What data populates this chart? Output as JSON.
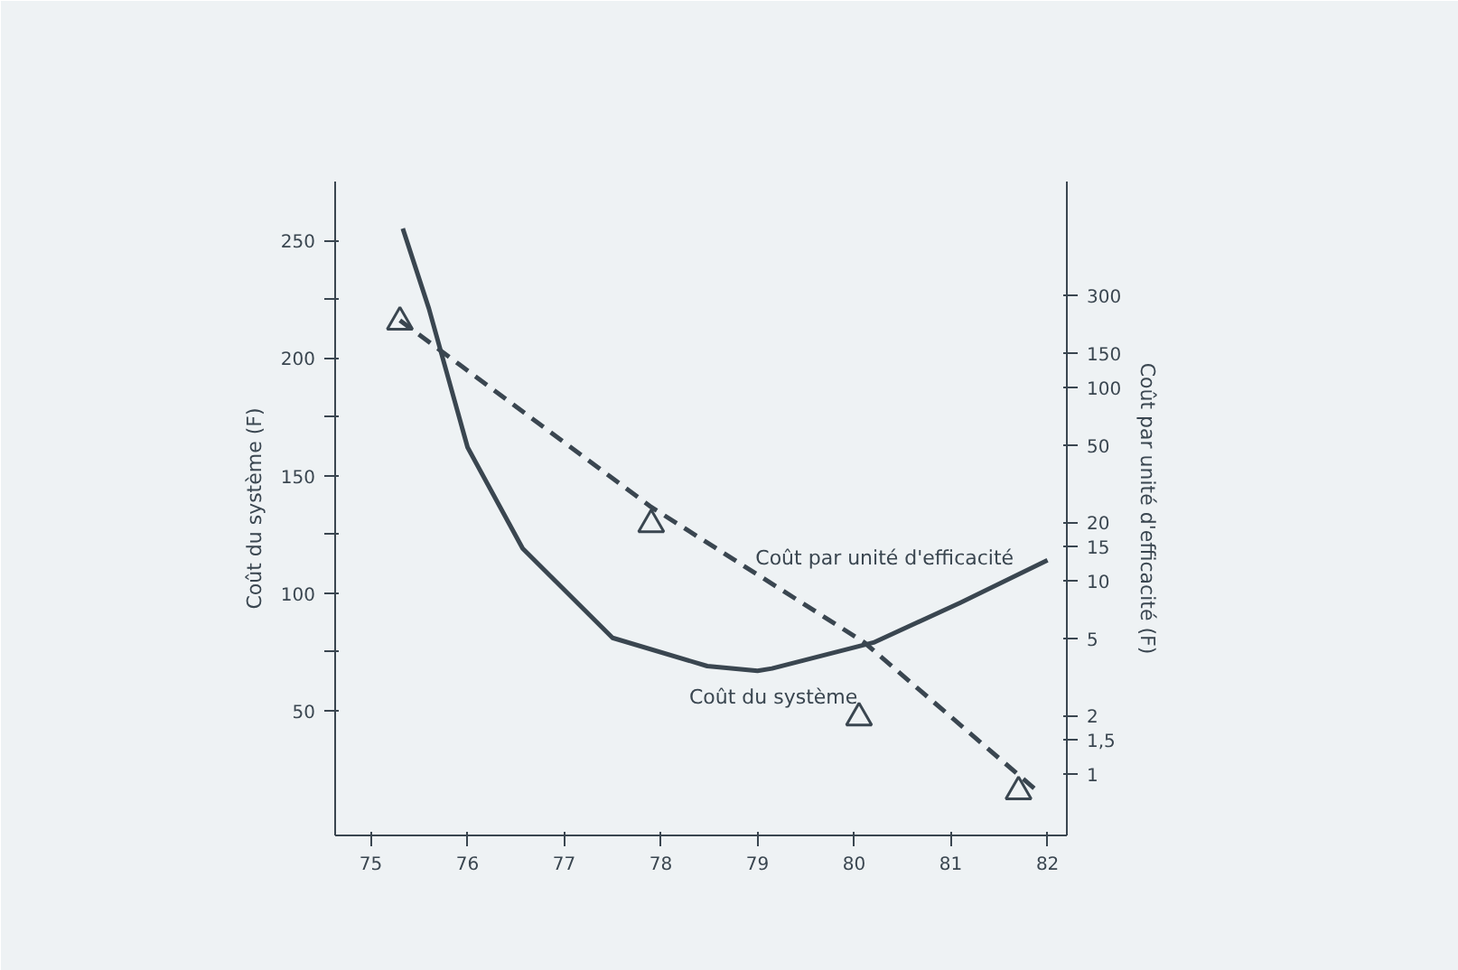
{
  "chart_data": {
    "type": "line",
    "xlabel": null,
    "ylabel": "Coût du système (F)",
    "y2label": "Coût par unité d'efficacité (F)",
    "xlim": [
      74.63,
      82.2
    ],
    "xticks": [
      75,
      76,
      77,
      78,
      79,
      80,
      81,
      82
    ],
    "ylim": [
      -3,
      275
    ],
    "yticks": [
      50,
      {
        "value": 75,
        "label": null
      },
      100,
      {
        "value": 125,
        "label": null
      },
      150,
      {
        "value": 175,
        "label": null
      },
      200,
      {
        "value": 225,
        "label": null
      },
      250
    ],
    "y2lim": [
      0.48,
      1160
    ],
    "y2ticks": [
      1,
      {
        "value": 1.5,
        "label": "1,5"
      },
      2,
      5,
      10,
      15,
      20,
      50,
      100,
      150,
      300
    ],
    "log": "y2",
    "grid": false,
    "series": [
      {
        "name": "Coût du système",
        "color": "#3a4650",
        "line_style": "solid",
        "marker": "none",
        "x": [
          75.33,
          75.6,
          76.0,
          76.57,
          77.5,
          78.48,
          79.0,
          79.15,
          80.2,
          81.1,
          82.0
        ],
        "values": [
          255,
          221,
          162,
          119,
          81,
          69,
          67,
          68,
          79,
          96,
          114
        ]
      },
      {
        "name": "Coût par unité d'efficacité",
        "color": "#3a4650",
        "axis": "y2",
        "line_style": "dashed",
        "marker": "none",
        "x": [
          75.3,
          77.9,
          80.1,
          81.9
        ],
        "values": [
          222,
          24,
          4.8,
          0.81
        ]
      },
      {
        "type": "scatter",
        "color": "#3a4650",
        "axis": "y2",
        "marker": "triangle",
        "x": [
          75.3,
          77.9,
          80.05,
          81.7
        ],
        "values": [
          218,
          19.5,
          1.95,
          0.81
        ]
      }
    ]
  }
}
